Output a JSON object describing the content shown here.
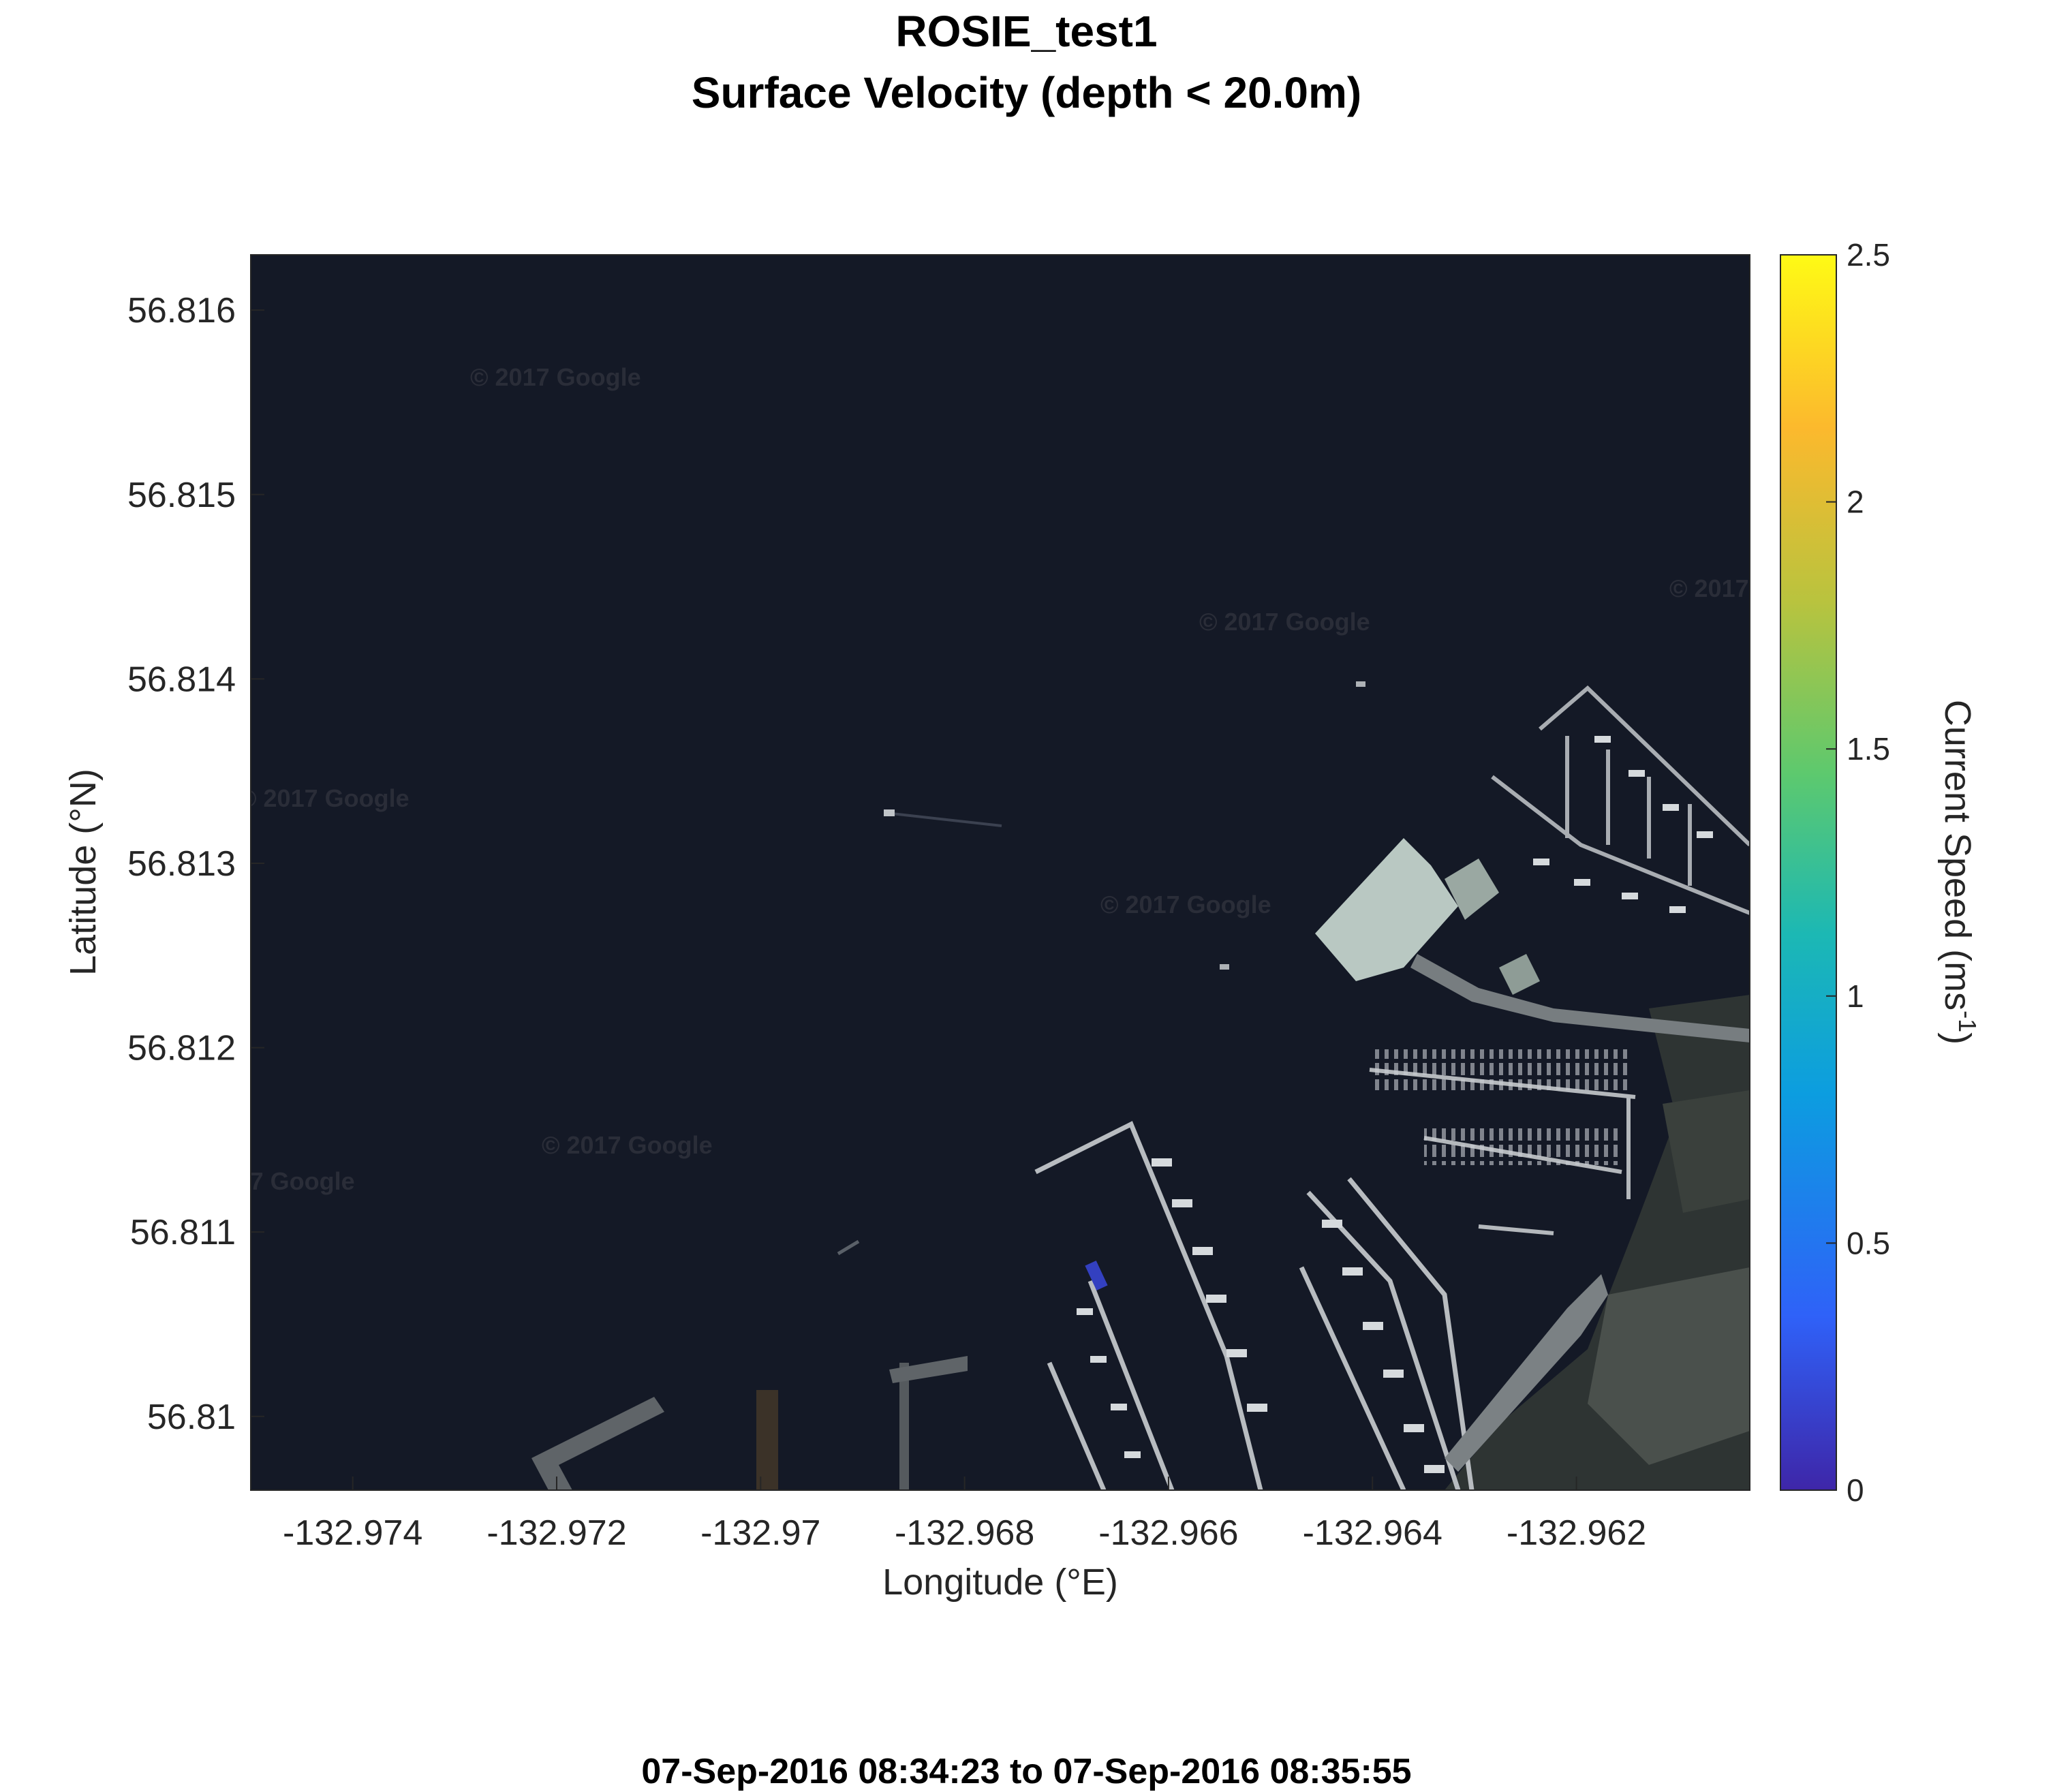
{
  "title": "ROSIE_test1",
  "subtitle": "Surface Velocity (depth < 20.0m)",
  "time_range": "07-Sep-2016 08:34:23 to 07-Sep-2016 08:35:55",
  "axes": {
    "xlabel": "Longitude (°E)",
    "ylabel": "Latitude (°N)",
    "x_ticks": [
      "-132.974",
      "-132.972",
      "-132.97",
      "-132.968",
      "-132.966",
      "-132.964",
      "-132.962"
    ],
    "y_ticks": [
      "56.816",
      "56.815",
      "56.814",
      "56.813",
      "56.812",
      "56.811",
      "56.81"
    ],
    "x_range": [
      -132.975,
      -132.9603
    ],
    "y_range": [
      56.8096,
      56.8163
    ]
  },
  "colorbar": {
    "label_main": "Current Speed (ms",
    "label_sup": "-1",
    "label_end": ")",
    "ticks": [
      "0",
      "0.5",
      "1",
      "1.5",
      "2",
      "2.5"
    ],
    "range": [
      0,
      2.5
    ],
    "colormap": [
      "#3e26a8",
      "#2f61f8",
      "#0c9de0",
      "#1cb8b4",
      "#5dc96e",
      "#b9c33e",
      "#fcb92d",
      "#fefa15"
    ]
  },
  "basemap": {
    "watermark": "© 2017 Google",
    "water_color": "#141926"
  }
}
